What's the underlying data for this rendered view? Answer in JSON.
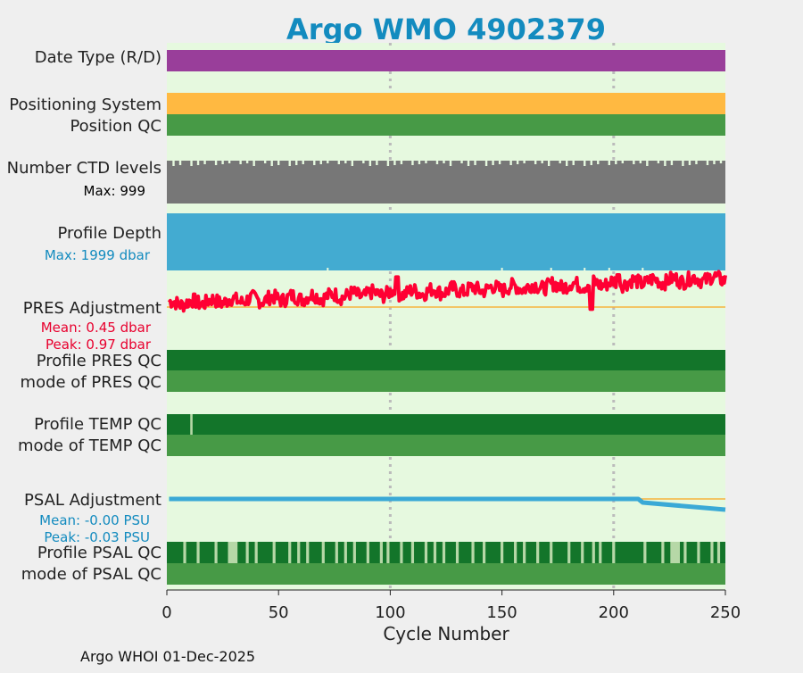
{
  "chart_data": {
    "type": "timeline-panels",
    "title": "Argo WMO 4902379",
    "xlabel": "Cycle Number",
    "xlim": [
      0,
      250
    ],
    "xticks": [
      0,
      50,
      100,
      150,
      200,
      250
    ],
    "grid": "dotted vertical lines at 100 and 200",
    "footer": "Argo WHOI 01-Dec-2025",
    "rows": {
      "date_type": {
        "label": "Date Type (R/D)"
      },
      "positioning": {
        "label": "Positioning System"
      },
      "position_qc": {
        "label": "Position QC"
      },
      "ctd_levels": {
        "label": "Number CTD levels",
        "max_label": "Max: 999",
        "max": 999
      },
      "profile_depth": {
        "label": "Profile Depth",
        "max_label": "Max: 1999 dbar",
        "max": 1999
      },
      "pres_adj": {
        "label": "PRES Adjustment",
        "mean_label": "Mean: 0.45 dbar",
        "peak_label": "Peak: 0.97 dbar",
        "mean": 0.45,
        "peak": 0.97
      },
      "profile_pres_qc": {
        "label": "Profile PRES QC"
      },
      "mode_pres_qc": {
        "label": "mode of PRES QC"
      },
      "profile_temp_qc": {
        "label": "Profile TEMP QC",
        "light_cycles": [
          11
        ]
      },
      "mode_temp_qc": {
        "label": "mode of TEMP QC"
      },
      "psal_adj": {
        "label": "PSAL Adjustment",
        "mean_label": "Mean: -0.00 PSU",
        "peak_label": "Peak: -0.03 PSU",
        "mean": -0.0,
        "peak": -0.03,
        "x": [
          1,
          211,
          213,
          250
        ],
        "y": [
          0.0,
          0.0,
          -0.01,
          -0.03
        ]
      },
      "profile_psal_qc": {
        "label": "Profile PSAL QC",
        "light_cycles": [
          8,
          14,
          22,
          28,
          29,
          30,
          31,
          36,
          40,
          48,
          55,
          59,
          63,
          70,
          76,
          80,
          84,
          90,
          96,
          99,
          105,
          110,
          116,
          120,
          124,
          130,
          137,
          142,
          150,
          156,
          160,
          166,
          172,
          180,
          186,
          191,
          194,
          200,
          214,
          222,
          226,
          227,
          228,
          229,
          232,
          238,
          244,
          247
        ]
      },
      "mode_psal_qc": {
        "label": "mode of PSAL QC"
      }
    },
    "colors": {
      "background": "#e6f9df",
      "date_type": "#993e9a",
      "positioning": "#ffb941",
      "qc_good": "#479a46",
      "qc_dark": "#13752a",
      "qc_light": "#b6d8a7",
      "ctd": "#777777",
      "depth": "#43abd1",
      "pres_line": "#ff0033",
      "psal_line": "#3aa9d6",
      "zero_line": "#f5b43f",
      "title": "#138bbf",
      "pres_text": "#e8002e",
      "psal_text": "#138bbf"
    }
  }
}
